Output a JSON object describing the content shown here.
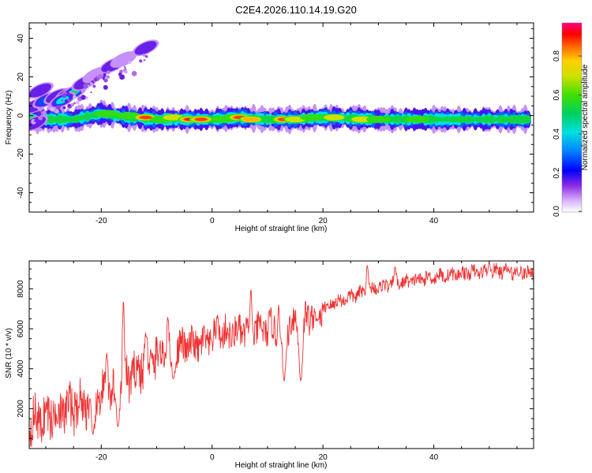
{
  "title": "C2E4.2026.110.14.19.G20",
  "chart_data": [
    {
      "type": "heatmap",
      "xlabel": "Height of straight line (km)",
      "ylabel": "Frequency (Hz)",
      "xlim": [
        -33,
        58
      ],
      "ylim": [
        -50,
        48
      ],
      "xticks": [
        -20,
        0,
        20,
        40
      ],
      "yticks": [
        40,
        20,
        0,
        -20,
        -40
      ],
      "colorbar": {
        "label": "Normalized spectral amplitude",
        "range": [
          0.0,
          0.97
        ],
        "ticks": [
          0.0,
          0.2,
          0.4,
          0.6,
          0.8
        ],
        "tick_labels": [
          "0.0",
          "0.2",
          "0.4",
          "0.6",
          "0.8"
        ]
      },
      "main_band": {
        "x_start": -33,
        "x_end": 57,
        "centers": [
          [
            -33,
            -2
          ],
          [
            -28,
            -2
          ],
          [
            -25,
            -2
          ],
          [
            -20,
            1
          ],
          [
            -15,
            -1
          ],
          [
            -10,
            -2
          ],
          [
            -5,
            -2
          ],
          [
            0,
            -2
          ],
          [
            5,
            -1
          ],
          [
            10,
            -2
          ],
          [
            15,
            -2
          ],
          [
            20,
            -1
          ],
          [
            30,
            -2
          ],
          [
            40,
            -2
          ],
          [
            50,
            -2
          ],
          [
            57,
            -2
          ]
        ]
      },
      "hot_spots": [
        {
          "x": -29.5,
          "y": -2,
          "amp": 0.55
        },
        {
          "x": -23,
          "y": 0,
          "amp": 0.45
        },
        {
          "x": -19,
          "y": 1,
          "amp": 0.7
        },
        {
          "x": -15,
          "y": 0,
          "amp": 0.6
        },
        {
          "x": -12,
          "y": -1,
          "amp": 0.9
        },
        {
          "x": -9,
          "y": -2,
          "amp": 0.7
        },
        {
          "x": -7,
          "y": -1,
          "amp": 0.8
        },
        {
          "x": -4,
          "y": -2,
          "amp": 0.97
        },
        {
          "x": -2,
          "y": -2,
          "amp": 0.95
        },
        {
          "x": 2,
          "y": -2,
          "amp": 0.6
        },
        {
          "x": 4,
          "y": -1,
          "amp": 0.7
        },
        {
          "x": 5,
          "y": -1,
          "amp": 0.9
        },
        {
          "x": 7,
          "y": -2,
          "amp": 0.85
        },
        {
          "x": 9,
          "y": -2,
          "amp": 0.5
        },
        {
          "x": 13,
          "y": -2,
          "amp": 0.9
        },
        {
          "x": 15,
          "y": -2,
          "amp": 0.8
        },
        {
          "x": 18,
          "y": -1,
          "amp": 0.6
        },
        {
          "x": 22,
          "y": -1,
          "amp": 0.8
        },
        {
          "x": 27,
          "y": -2,
          "amp": 0.8
        },
        {
          "x": 30,
          "y": -2,
          "amp": 0.6
        },
        {
          "x": 37,
          "y": -2,
          "amp": 0.6
        },
        {
          "x": 44,
          "y": -2,
          "amp": 0.5
        },
        {
          "x": 50,
          "y": -2,
          "amp": 0.5
        },
        {
          "x": 55,
          "y": -2,
          "amp": 0.5
        }
      ],
      "diagonal_features": [
        {
          "x": -32,
          "y": 5,
          "amp": 0.25
        },
        {
          "x": -30,
          "y": 8,
          "amp": 0.3
        },
        {
          "x": -28,
          "y": 10,
          "amp": 0.2
        },
        {
          "x": -26,
          "y": 11,
          "amp": 0.55
        },
        {
          "x": -25,
          "y": 12,
          "amp": 0.6
        },
        {
          "x": -27,
          "y": 8,
          "amp": 0.45
        },
        {
          "x": -31,
          "y": 13,
          "amp": 0.2
        },
        {
          "x": -23,
          "y": 17,
          "amp": 0.2
        },
        {
          "x": -21,
          "y": 21,
          "amp": 0.15
        },
        {
          "x": -18,
          "y": 26,
          "amp": 0.2
        },
        {
          "x": -16,
          "y": 29,
          "amp": 0.15
        },
        {
          "x": -12,
          "y": 35,
          "amp": 0.2
        },
        {
          "x": -32,
          "y": -4,
          "amp": 0.25
        }
      ]
    },
    {
      "type": "line",
      "xlabel": "Height of straight line (km)",
      "ylabel": "SNR (10 * v/v)",
      "xlim": [
        -33,
        58
      ],
      "ylim": [
        0,
        9400
      ],
      "xticks": [
        -20,
        0,
        20,
        40
      ],
      "yticks": [
        2000,
        4000,
        6000,
        8000
      ],
      "color": "#ee3333",
      "trend": [
        [
          -33,
          1300
        ],
        [
          -28,
          1800
        ],
        [
          -24,
          2200
        ],
        [
          -20,
          2600
        ],
        [
          -16,
          3300
        ],
        [
          -13,
          4000
        ],
        [
          -10,
          4600
        ],
        [
          -6,
          5100
        ],
        [
          -2,
          5200
        ],
        [
          2,
          5700
        ],
        [
          6,
          5900
        ],
        [
          10,
          6000
        ],
        [
          14,
          6300
        ],
        [
          18,
          6700
        ],
        [
          22,
          7300
        ],
        [
          26,
          7700
        ],
        [
          30,
          8100
        ],
        [
          34,
          8300
        ],
        [
          40,
          8600
        ],
        [
          46,
          8800
        ],
        [
          52,
          8900
        ],
        [
          58,
          8800
        ]
      ],
      "dips": [
        [
          -21.5,
          700
        ],
        [
          -17,
          1100
        ],
        [
          -7,
          3500
        ],
        [
          7,
          5300
        ],
        [
          12,
          4500
        ],
        [
          13,
          3400
        ],
        [
          16,
          3400
        ],
        [
          19,
          6400
        ]
      ],
      "peaks": [
        [
          -19,
          4800
        ],
        [
          -16,
          7400
        ],
        [
          -12,
          5800
        ],
        [
          -8,
          6600
        ],
        [
          1,
          6700
        ],
        [
          7,
          8000
        ],
        [
          12,
          7200
        ],
        [
          28,
          9200
        ],
        [
          33,
          9100
        ],
        [
          50,
          9300
        ]
      ]
    }
  ]
}
